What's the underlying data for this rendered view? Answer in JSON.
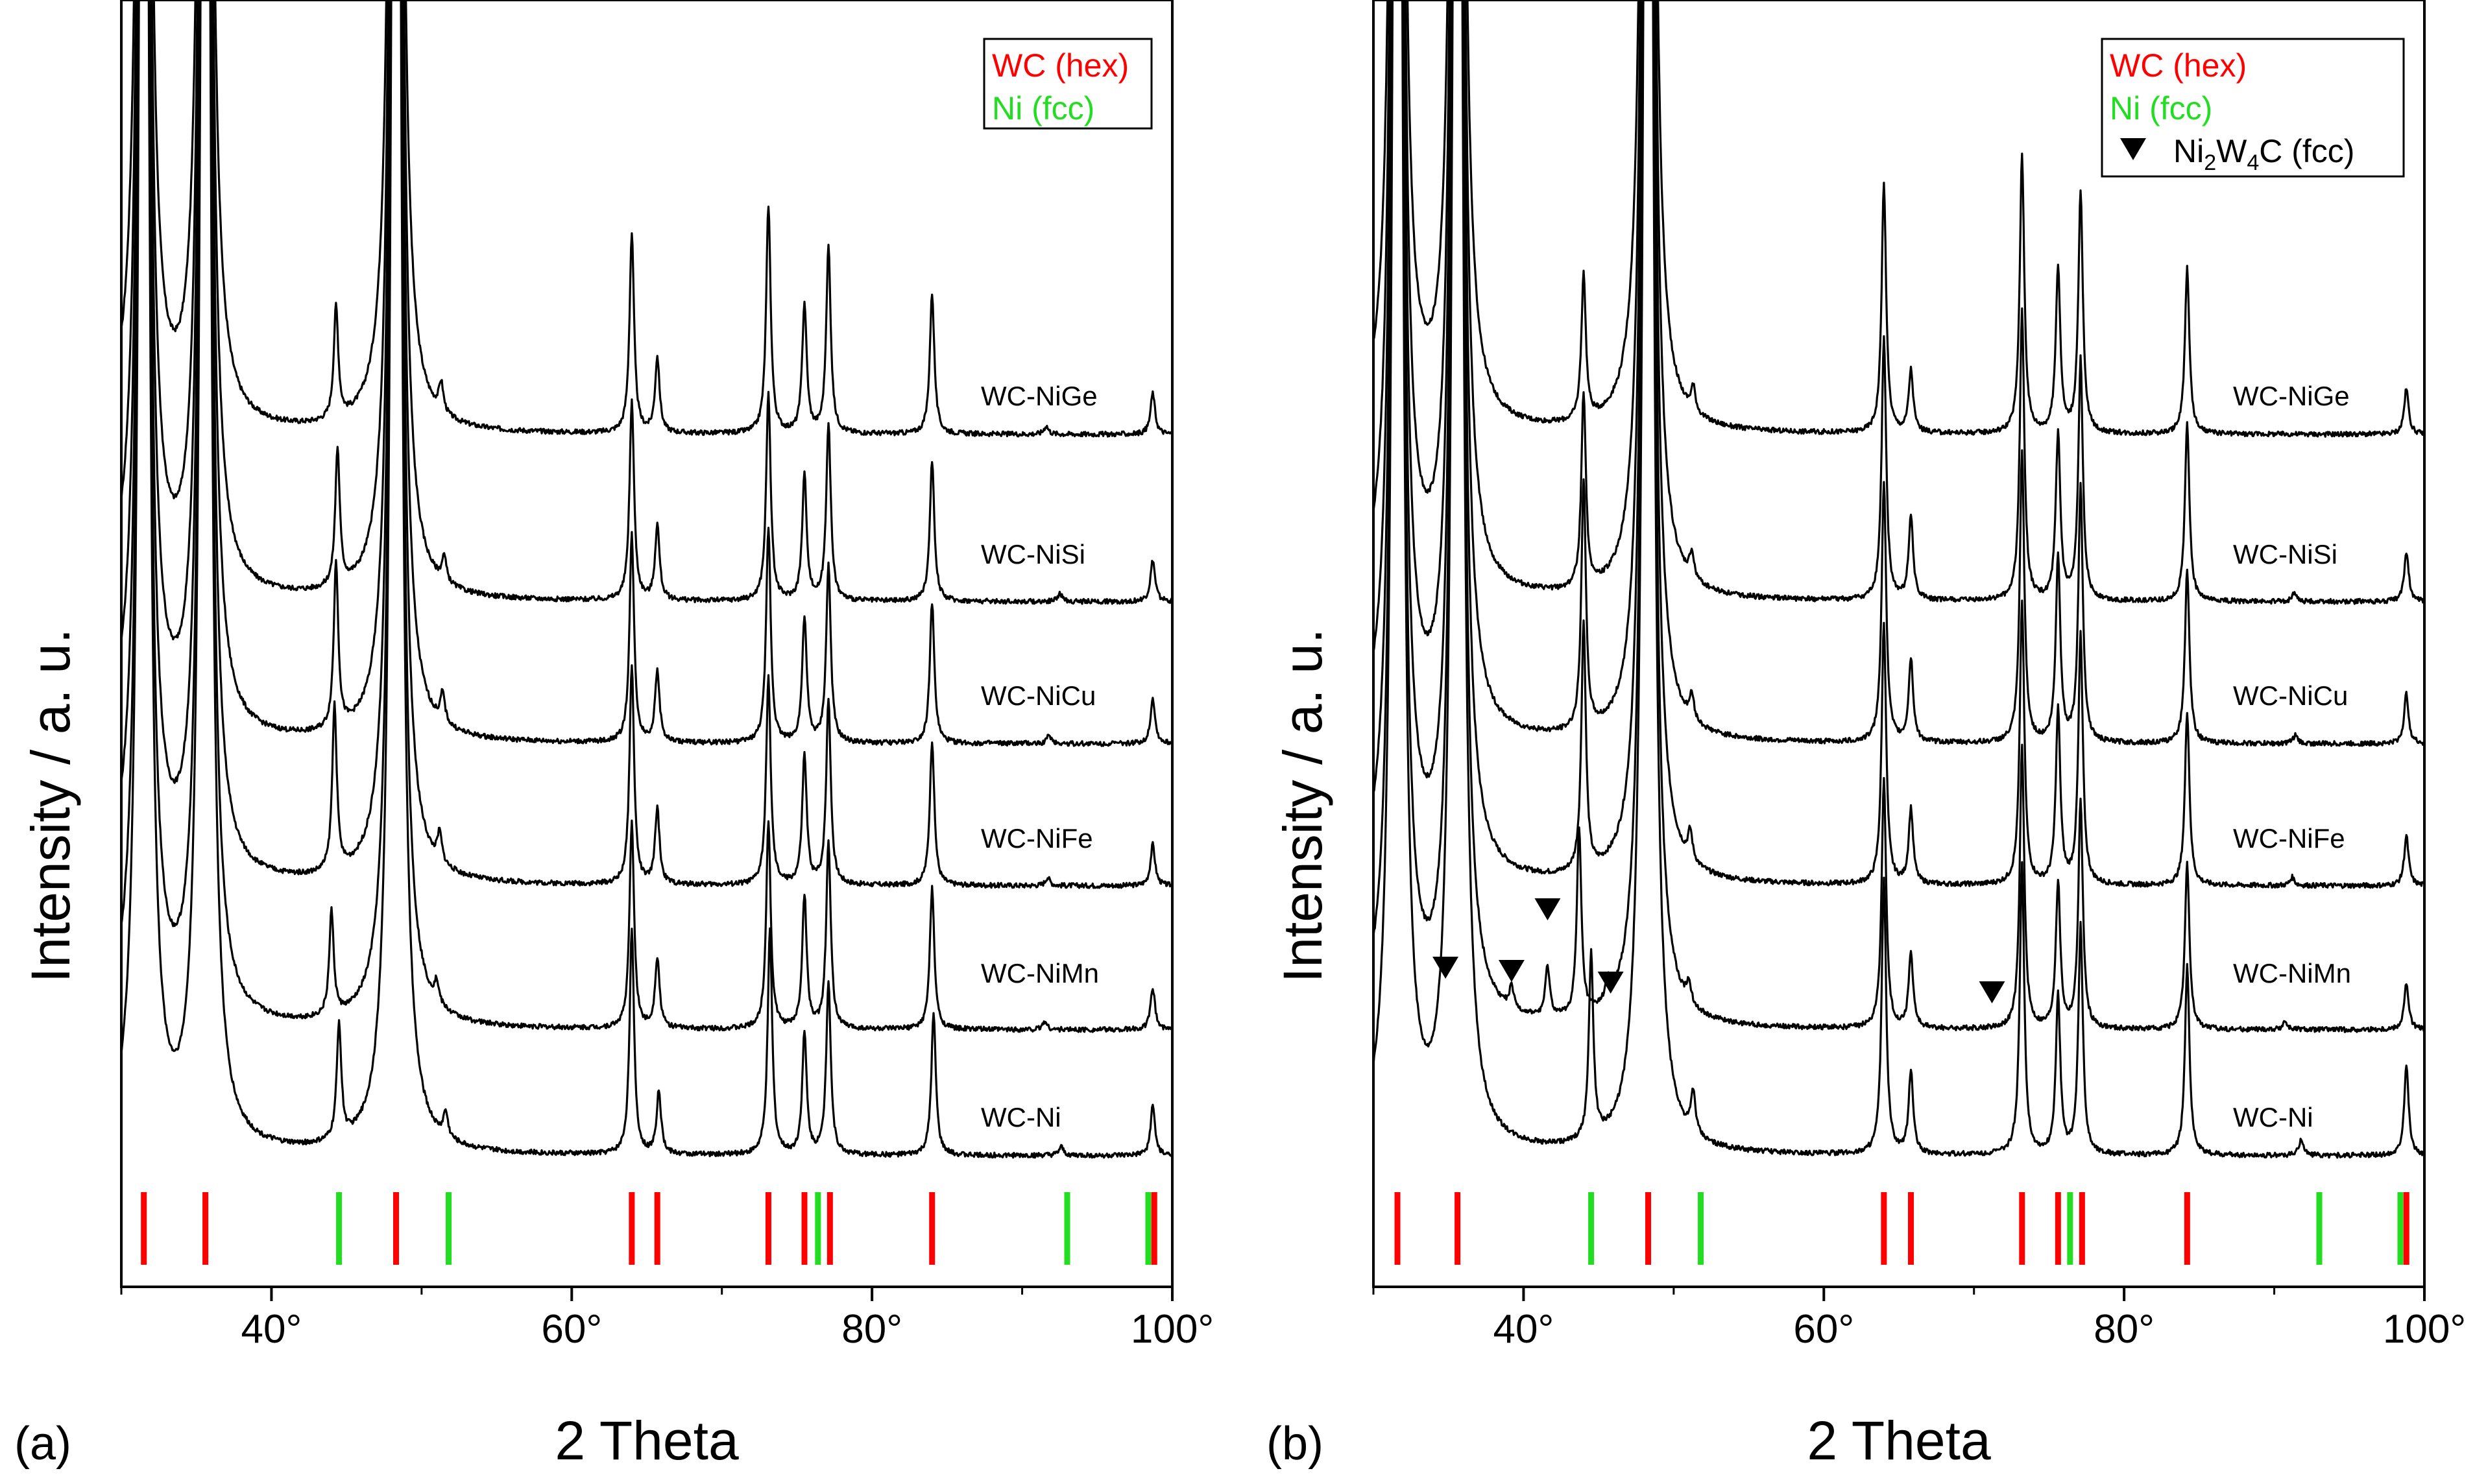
{
  "chart_data": [
    {
      "type": "line",
      "panel_label": "(a)",
      "xlabel": "2 Theta",
      "ylabel": "Intensity / a. u.",
      "xlim": [
        30,
        100
      ],
      "x_ticks": [
        40,
        60,
        80,
        100
      ],
      "x_tick_labels": [
        "40°",
        "60°",
        "80°",
        "100°"
      ],
      "legend": {
        "position": "top-right",
        "entries": [
          {
            "label": "WC (hex)",
            "color": "#ff0000",
            "marker": "text"
          },
          {
            "label": "Ni (fcc)",
            "color": "#22dd22",
            "marker": "text"
          }
        ]
      },
      "series": [
        {
          "name": "WC-NiGe",
          "peaks": [
            [
              31.5,
              1.0
            ],
            [
              35.6,
              1.0
            ],
            [
              44.3,
              0.27
            ],
            [
              48.3,
              1.0
            ],
            [
              51.3,
              0.07
            ],
            [
              64.0,
              0.48
            ],
            [
              65.7,
              0.18
            ],
            [
              73.1,
              0.55
            ],
            [
              75.5,
              0.31
            ],
            [
              77.1,
              0.45
            ],
            [
              84.0,
              0.34
            ],
            [
              91.6,
              0.02
            ],
            [
              98.7,
              0.1
            ]
          ]
        },
        {
          "name": "WC-NiSi",
          "peaks": [
            [
              31.5,
              1.0
            ],
            [
              35.6,
              1.0
            ],
            [
              44.4,
              0.33
            ],
            [
              48.3,
              1.0
            ],
            [
              51.5,
              0.06
            ],
            [
              64.0,
              0.48
            ],
            [
              65.7,
              0.18
            ],
            [
              73.1,
              0.5
            ],
            [
              75.5,
              0.3
            ],
            [
              77.1,
              0.43
            ],
            [
              84.0,
              0.34
            ],
            [
              92.5,
              0.02
            ],
            [
              98.7,
              0.1
            ]
          ]
        },
        {
          "name": "WC-NiCu",
          "peaks": [
            [
              31.5,
              1.0
            ],
            [
              35.6,
              1.0
            ],
            [
              44.3,
              0.4
            ],
            [
              48.3,
              1.0
            ],
            [
              51.4,
              0.07
            ],
            [
              64.0,
              0.5
            ],
            [
              65.7,
              0.17
            ],
            [
              73.1,
              0.52
            ],
            [
              75.5,
              0.3
            ],
            [
              77.1,
              0.43
            ],
            [
              84.0,
              0.34
            ],
            [
              91.8,
              0.02
            ],
            [
              98.7,
              0.11
            ]
          ]
        },
        {
          "name": "WC-NiFe",
          "peaks": [
            [
              31.5,
              1.0
            ],
            [
              35.6,
              1.0
            ],
            [
              44.2,
              0.4
            ],
            [
              48.3,
              1.0
            ],
            [
              51.2,
              0.07
            ],
            [
              64.0,
              0.53
            ],
            [
              65.7,
              0.18
            ],
            [
              73.1,
              0.5
            ],
            [
              75.5,
              0.31
            ],
            [
              77.1,
              0.45
            ],
            [
              84.0,
              0.35
            ],
            [
              91.7,
              0.02
            ],
            [
              98.7,
              0.1
            ]
          ]
        },
        {
          "name": "WC-NiMn",
          "peaks": [
            [
              31.5,
              1.0
            ],
            [
              35.6,
              1.0
            ],
            [
              44.0,
              0.25
            ],
            [
              48.3,
              1.0
            ],
            [
              51.0,
              0.05
            ],
            [
              64.0,
              0.5
            ],
            [
              65.7,
              0.17
            ],
            [
              73.1,
              0.5
            ],
            [
              75.5,
              0.32
            ],
            [
              77.1,
              0.45
            ],
            [
              84.0,
              0.34
            ],
            [
              91.5,
              0.02
            ],
            [
              98.7,
              0.1
            ]
          ]
        },
        {
          "name": "WC-Ni",
          "peaks": [
            [
              31.5,
              1.0
            ],
            [
              35.6,
              1.0
            ],
            [
              44.5,
              0.28
            ],
            [
              48.3,
              1.0
            ],
            [
              51.6,
              0.06
            ],
            [
              64.0,
              0.54
            ],
            [
              65.8,
              0.15
            ],
            [
              73.2,
              0.54
            ],
            [
              75.5,
              0.29
            ],
            [
              77.1,
              0.42
            ],
            [
              84.1,
              0.34
            ],
            [
              92.6,
              0.02
            ],
            [
              98.7,
              0.12
            ]
          ]
        }
      ],
      "reference_lines": [
        {
          "phase": "WC (hex)",
          "color": "#ff0000",
          "positions": [
            31.5,
            35.6,
            48.3,
            64.0,
            65.7,
            73.1,
            75.5,
            77.2,
            84.0,
            98.8
          ]
        },
        {
          "phase": "Ni (fcc)",
          "color": "#22dd22",
          "positions": [
            44.5,
            51.8,
            76.4,
            93.0,
            98.4
          ]
        }
      ]
    },
    {
      "type": "line",
      "panel_label": "(b)",
      "xlabel": "2 Theta",
      "ylabel": "Intensity / a. u.",
      "xlim": [
        30,
        100
      ],
      "x_ticks": [
        40,
        60,
        80,
        100
      ],
      "x_tick_labels": [
        "40°",
        "60°",
        "80°",
        "100°"
      ],
      "legend": {
        "position": "top-right",
        "entries": [
          {
            "label": "WC (hex)",
            "color": "#ff0000",
            "marker": "text"
          },
          {
            "label": "Ni (fcc)",
            "color": "#22dd22",
            "marker": "text"
          },
          {
            "label": "Ni2W4C (fcc)",
            "color": "#000000",
            "marker": "triangle-down"
          }
        ]
      },
      "series": [
        {
          "name": "WC-NiGe",
          "peaks": [
            [
              31.6,
              1.0
            ],
            [
              35.6,
              1.0
            ],
            [
              44.0,
              0.35
            ],
            [
              48.3,
              1.0
            ],
            [
              51.3,
              0.06
            ],
            [
              64.0,
              0.6
            ],
            [
              65.8,
              0.15
            ],
            [
              73.2,
              0.67
            ],
            [
              75.6,
              0.4
            ],
            [
              77.1,
              0.58
            ],
            [
              84.2,
              0.4
            ],
            [
              98.8,
              0.11
            ]
          ]
        },
        {
          "name": "WC-NiSi",
          "peaks": [
            [
              31.6,
              1.0
            ],
            [
              35.6,
              1.0
            ],
            [
              44.0,
              0.47
            ],
            [
              48.3,
              1.0
            ],
            [
              51.2,
              0.06
            ],
            [
              64.0,
              0.63
            ],
            [
              65.8,
              0.2
            ],
            [
              73.2,
              0.7
            ],
            [
              75.6,
              0.4
            ],
            [
              77.1,
              0.58
            ],
            [
              84.2,
              0.43
            ],
            [
              91.3,
              0.02
            ],
            [
              98.8,
              0.12
            ]
          ]
        },
        {
          "name": "WC-NiCu",
          "peaks": [
            [
              31.6,
              1.0
            ],
            [
              35.6,
              1.0
            ],
            [
              44.0,
              0.6
            ],
            [
              48.3,
              1.0
            ],
            [
              51.2,
              0.06
            ],
            [
              64.0,
              0.63
            ],
            [
              65.8,
              0.2
            ],
            [
              73.2,
              0.7
            ],
            [
              75.6,
              0.45
            ],
            [
              77.1,
              0.62
            ],
            [
              84.2,
              0.42
            ],
            [
              91.4,
              0.02
            ],
            [
              98.8,
              0.12
            ]
          ]
        },
        {
          "name": "WC-NiFe",
          "peaks": [
            [
              31.6,
              1.0
            ],
            [
              35.6,
              1.0
            ],
            [
              44.0,
              0.6
            ],
            [
              48.3,
              1.0
            ],
            [
              51.1,
              0.07
            ],
            [
              64.0,
              0.63
            ],
            [
              65.8,
              0.18
            ],
            [
              73.2,
              0.68
            ],
            [
              75.6,
              0.42
            ],
            [
              77.1,
              0.6
            ],
            [
              84.2,
              0.42
            ],
            [
              91.2,
              0.02
            ],
            [
              98.8,
              0.12
            ]
          ]
        },
        {
          "name": "WC-NiMn",
          "peaks": [
            [
              31.6,
              1.0
            ],
            [
              35.6,
              1.0
            ],
            [
              39.2,
              0.05
            ],
            [
              41.6,
              0.12
            ],
            [
              43.7,
              0.45
            ],
            [
              45.6,
              0.05
            ],
            [
              48.3,
              1.0
            ],
            [
              51.0,
              0.05
            ],
            [
              64.0,
              0.6
            ],
            [
              65.8,
              0.18
            ],
            [
              73.2,
              0.68
            ],
            [
              75.6,
              0.35
            ],
            [
              77.1,
              0.55
            ],
            [
              84.2,
              0.4
            ],
            [
              90.7,
              0.02
            ],
            [
              98.8,
              0.11
            ]
          ]
        },
        {
          "name": "WC-Ni",
          "peaks": [
            [
              31.6,
              1.0
            ],
            [
              35.6,
              1.0
            ],
            [
              44.5,
              0.45
            ],
            [
              48.3,
              1.0
            ],
            [
              51.3,
              0.1
            ],
            [
              64.0,
              0.66
            ],
            [
              65.8,
              0.2
            ],
            [
              73.2,
              0.7
            ],
            [
              75.6,
              0.38
            ],
            [
              77.1,
              0.55
            ],
            [
              84.2,
              0.46
            ],
            [
              91.8,
              0.04
            ],
            [
              98.8,
              0.22
            ]
          ]
        }
      ],
      "reference_lines": [
        {
          "phase": "WC (hex)",
          "color": "#ff0000",
          "positions": [
            31.6,
            35.6,
            48.3,
            64.0,
            65.8,
            73.2,
            75.6,
            77.2,
            84.2,
            98.8
          ]
        },
        {
          "phase": "Ni (fcc)",
          "color": "#22dd22",
          "positions": [
            44.5,
            51.8,
            76.4,
            93.0,
            98.4
          ]
        }
      ],
      "annotations": [
        {
          "marker": "triangle-down",
          "phase": "Ni2W4C (fcc)",
          "series": "WC-NiMn",
          "x_positions": [
            34.8,
            39.2,
            41.6,
            45.8,
            71.2
          ]
        }
      ]
    }
  ]
}
